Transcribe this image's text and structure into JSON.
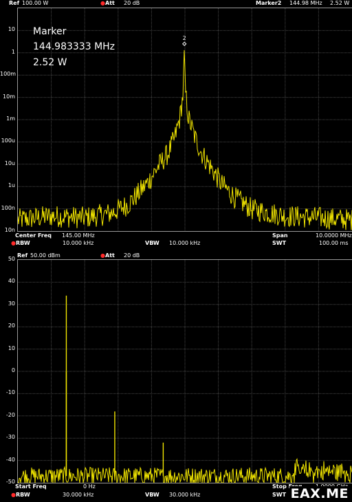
{
  "top": {
    "ref_label": "Ref",
    "ref_value": "100.00 W",
    "att_label": "Att",
    "att_value": "20 dB",
    "marker_label": "Marker2",
    "marker_freq": "144.98 MHz",
    "marker_power": "2.52 W",
    "annotation": {
      "title": "Marker",
      "freq": "144.983333 MHz",
      "power": "2.52 W"
    },
    "marker_number": "2",
    "footer": {
      "center_label": "Center Freq",
      "center_value": "145.00 MHz",
      "span_label": "Span",
      "span_value": "10.0000 MHz",
      "rbw_label": "RBW",
      "rbw_value": "10.000 kHz",
      "vbw_label": "VBW",
      "vbw_value": "10.000 kHz",
      "swt_label": "SWT",
      "swt_value": "100.00 ms"
    }
  },
  "bottom": {
    "ref_label": "Ref",
    "ref_value": "50.00 dBm",
    "att_label": "Att",
    "att_value": "20 dB",
    "footer": {
      "start_label": "Start Freq",
      "start_value": "0 Hz",
      "stop_label": "Stop Freq",
      "stop_value": "1.0000 GHz",
      "rbw_label": "RBW",
      "rbw_value": "30.000 kHz",
      "vbw_label": "VBW",
      "vbw_value": "30.000 kHz",
      "swt_label": "SWT"
    }
  },
  "watermark": "EAX.ME",
  "colors": {
    "trace": "#f2e600",
    "grid": "#4a4a4a",
    "border": "#9a9a9a",
    "marker_dot": "#ff2a2a"
  },
  "chart_data": [
    {
      "type": "line",
      "ylabel_scale": "log",
      "yticks": [
        "10",
        "1",
        "100m",
        "10m",
        "1m",
        "100u",
        "10u",
        "1u",
        "100n",
        "10n"
      ],
      "ylim": [
        1e-08,
        100
      ],
      "x_unit": "MHz",
      "xlim": [
        140,
        150
      ],
      "series": [
        {
          "points": [
            [
              140.0,
              2e-08
            ],
            [
              141.0,
              3e-08
            ],
            [
              142.0,
              2.5e-08
            ],
            [
              142.8,
              4e-08
            ],
            [
              143.3,
              1e-07
            ],
            [
              143.6,
              3e-07
            ],
            [
              143.9,
              1e-06
            ],
            [
              144.2,
              5e-06
            ],
            [
              144.5,
              2e-05
            ],
            [
              144.7,
              0.0001
            ],
            [
              144.85,
              0.0008
            ],
            [
              144.95,
              0.01
            ],
            [
              144.983333,
              2.52
            ],
            [
              145.02,
              0.01
            ],
            [
              145.1,
              0.0008
            ],
            [
              145.3,
              0.0001
            ],
            [
              145.5,
              2e-05
            ],
            [
              145.8,
              4e-06
            ],
            [
              146.1,
              8e-07
            ],
            [
              146.5,
              2e-07
            ],
            [
              147.0,
              6e-08
            ],
            [
              148.0,
              3e-08
            ],
            [
              149.0,
              2.5e-08
            ],
            [
              150.0,
              2e-08
            ]
          ],
          "noise_floor": 2e-08
        }
      ],
      "marker": {
        "x": 144.983333,
        "y": 2.52
      }
    },
    {
      "type": "line",
      "yticks": [
        50,
        40,
        30,
        20,
        10,
        0,
        -10,
        -20,
        -30,
        -40,
        -50
      ],
      "ylim": [
        -50,
        50
      ],
      "x_unit": "MHz",
      "xlim": [
        0,
        1000
      ],
      "series": [
        {
          "noise_floor": -47,
          "peaks": [
            [
              145,
              34
            ],
            [
              145,
              0
            ],
            [
              290,
              -18
            ],
            [
              435,
              -32
            ]
          ]
        }
      ]
    }
  ]
}
